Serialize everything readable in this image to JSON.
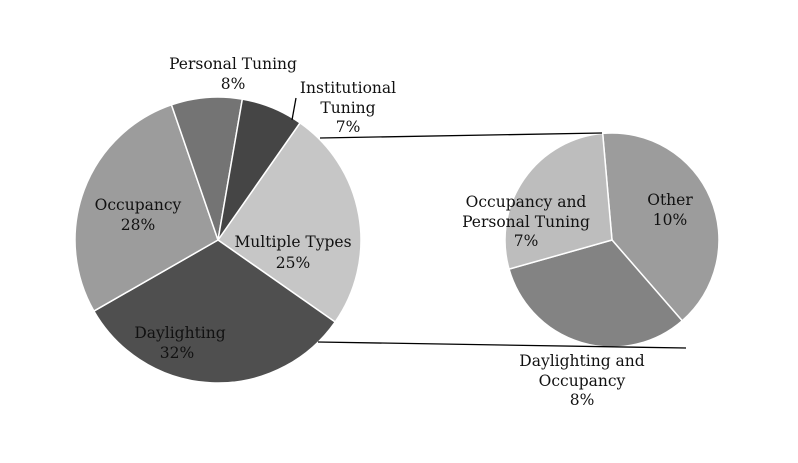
{
  "chart_data": {
    "type": "pie",
    "title": "",
    "main_pie": {
      "slices": [
        {
          "label": "Multiple Types",
          "value": 25,
          "value_label": "25%",
          "color": "#c6c6c6"
        },
        {
          "label": "Daylighting",
          "value": 32,
          "value_label": "32%",
          "color": "#4f4f4f"
        },
        {
          "label": "Occupancy",
          "value": 28,
          "value_label": "28%",
          "color": "#9c9c9c"
        },
        {
          "label": "Personal Tuning",
          "value": 8,
          "value_label": "8%",
          "color": "#747474"
        },
        {
          "label": "Institutional Tuning",
          "value": 7,
          "value_label": "7%",
          "color": "#454545"
        }
      ]
    },
    "breakout_of": "Multiple Types",
    "secondary_pie": {
      "slices": [
        {
          "label": "Other",
          "value": 10,
          "value_label": "10%",
          "color": "#9c9c9c"
        },
        {
          "label": "Daylighting and Occupancy",
          "value": 8,
          "value_label": "8%",
          "color": "#838383"
        },
        {
          "label": "Occupancy and Personal Tuning",
          "value": 7,
          "value_label": "7%",
          "color": "#bdbdbd"
        }
      ]
    }
  }
}
